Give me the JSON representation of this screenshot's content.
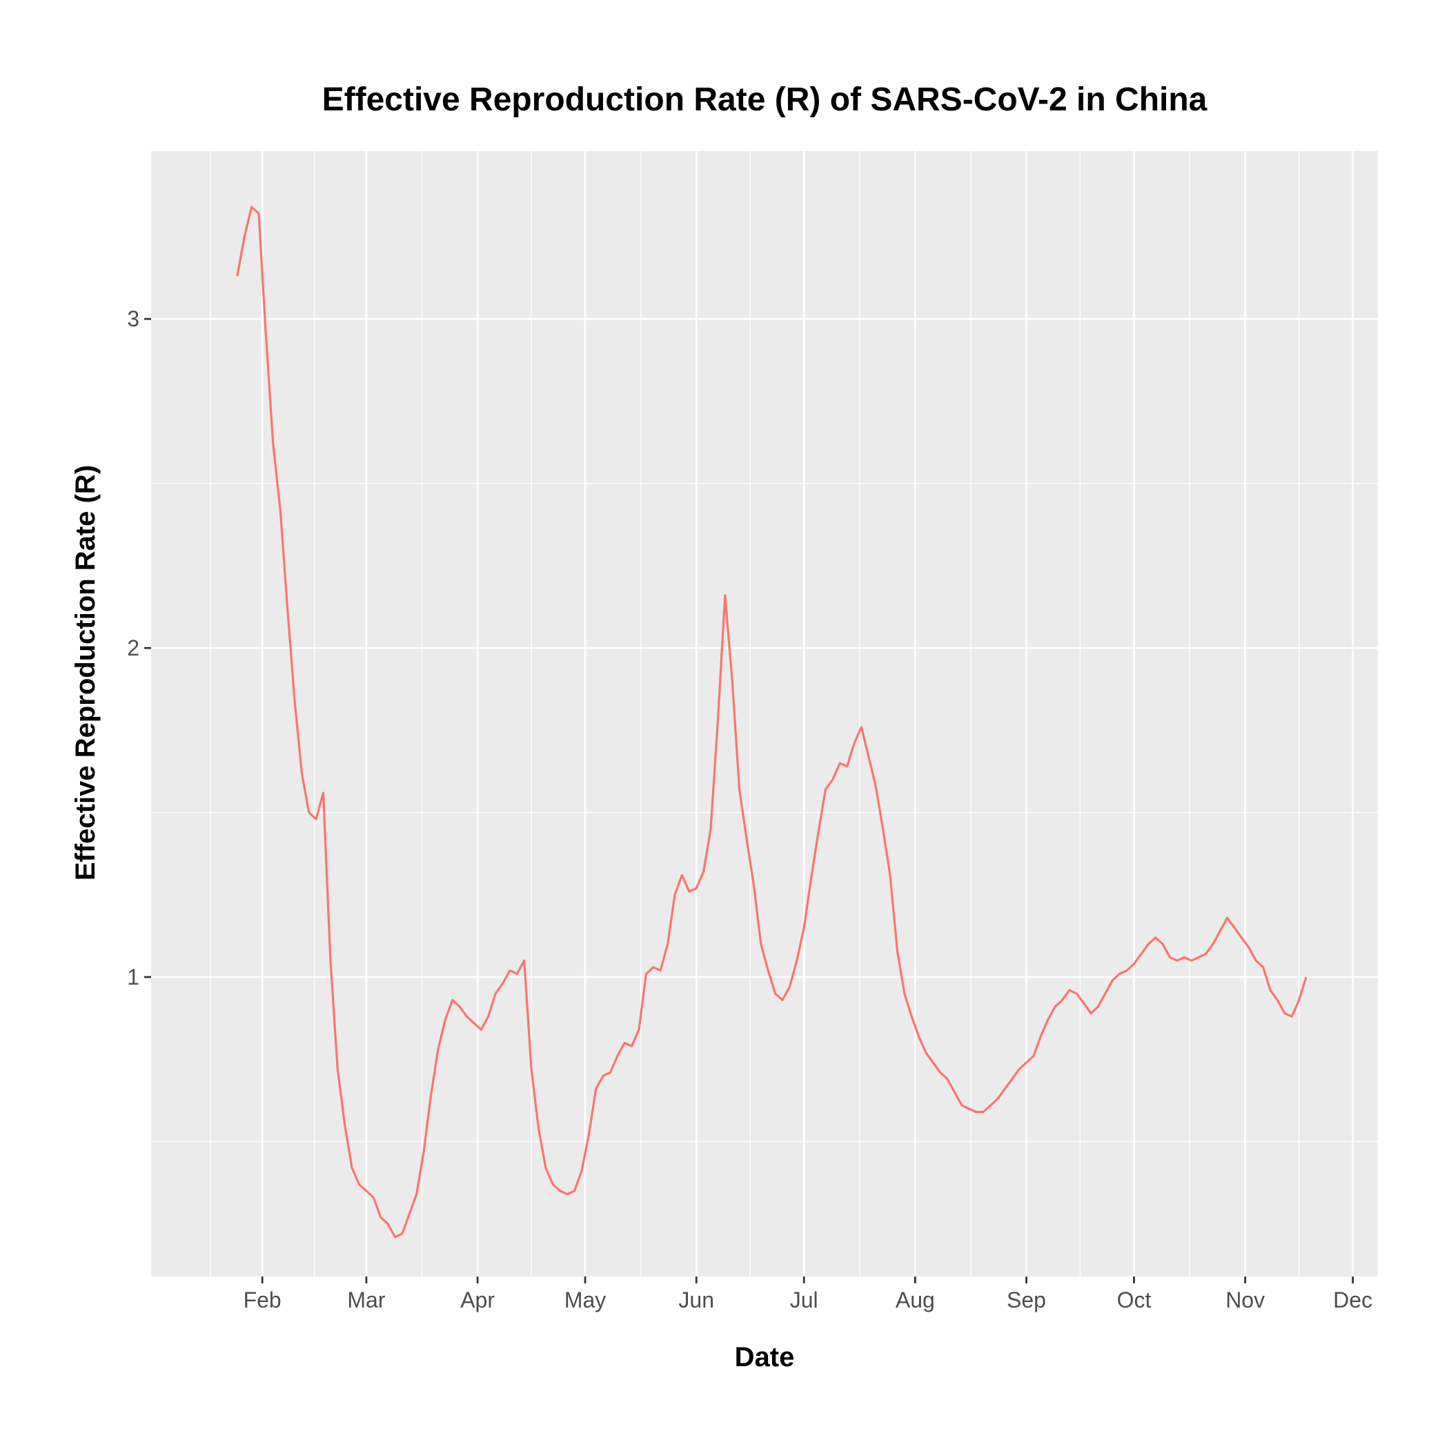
{
  "chart_data": {
    "type": "line",
    "title": "Effective Reproduction Rate (R) of SARS-CoV-2 in China",
    "xlabel": "Date",
    "ylabel": "Effective Reproduction Rate (R)",
    "x_start_day": 24,
    "x_end_day": 326,
    "x_step_days": 2,
    "xlim_days": [
      0,
      342
    ],
    "ylim": [
      0.09,
      3.51
    ],
    "x_ticks": [
      {
        "label": "Feb",
        "day": 31
      },
      {
        "label": "Mar",
        "day": 60
      },
      {
        "label": "Apr",
        "day": 91
      },
      {
        "label": "May",
        "day": 121
      },
      {
        "label": "Jun",
        "day": 152
      },
      {
        "label": "Jul",
        "day": 182
      },
      {
        "label": "Aug",
        "day": 213
      },
      {
        "label": "Sep",
        "day": 244
      },
      {
        "label": "Oct",
        "day": 274
      },
      {
        "label": "Nov",
        "day": 305
      },
      {
        "label": "Dec",
        "day": 335
      }
    ],
    "y_ticks": [
      {
        "label": "1",
        "value": 1
      },
      {
        "label": "2",
        "value": 2
      },
      {
        "label": "3",
        "value": 3
      }
    ],
    "y_minor": [
      0.5,
      1.5,
      2.5
    ],
    "series": [
      {
        "name": "R",
        "color": "#F8766D",
        "values": [
          3.13,
          3.25,
          3.34,
          3.32,
          2.95,
          2.62,
          2.42,
          2.12,
          1.84,
          1.62,
          1.5,
          1.48,
          1.56,
          1.05,
          0.72,
          0.55,
          0.42,
          0.37,
          0.35,
          0.33,
          0.27,
          0.25,
          0.21,
          0.22,
          0.28,
          0.34,
          0.47,
          0.64,
          0.78,
          0.87,
          0.93,
          0.91,
          0.88,
          0.86,
          0.84,
          0.88,
          0.95,
          0.98,
          1.02,
          1.01,
          1.05,
          0.72,
          0.54,
          0.42,
          0.37,
          0.35,
          0.34,
          0.35,
          0.41,
          0.52,
          0.66,
          0.7,
          0.71,
          0.76,
          0.8,
          0.79,
          0.84,
          1.01,
          1.03,
          1.02,
          1.1,
          1.25,
          1.31,
          1.26,
          1.27,
          1.32,
          1.45,
          1.78,
          2.16,
          1.9,
          1.57,
          1.42,
          1.28,
          1.1,
          1.02,
          0.95,
          0.93,
          0.97,
          1.05,
          1.15,
          1.3,
          1.44,
          1.57,
          1.6,
          1.65,
          1.64,
          1.71,
          1.76,
          1.67,
          1.58,
          1.45,
          1.31,
          1.08,
          0.95,
          0.88,
          0.82,
          0.77,
          0.74,
          0.71,
          0.69,
          0.65,
          0.61,
          0.6,
          0.59,
          0.59,
          0.61,
          0.63,
          0.66,
          0.69,
          0.72,
          0.74,
          0.76,
          0.82,
          0.87,
          0.91,
          0.93,
          0.96,
          0.95,
          0.92,
          0.89,
          0.91,
          0.95,
          0.99,
          1.01,
          1.02,
          1.04,
          1.07,
          1.1,
          1.12,
          1.1,
          1.06,
          1.05,
          1.06,
          1.05,
          1.06,
          1.07,
          1.1,
          1.14,
          1.18,
          1.15,
          1.12,
          1.09,
          1.05,
          1.03,
          0.96,
          0.93,
          0.89,
          0.88,
          0.93,
          1.0
        ]
      }
    ]
  }
}
